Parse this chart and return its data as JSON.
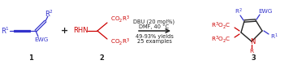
{
  "blue": "#3333cc",
  "red": "#cc0000",
  "black": "#222222",
  "bg": "#ffffff",
  "figsize": [
    3.77,
    0.85
  ],
  "dpi": 100,
  "compound1_label": "1",
  "compound2_label": "2",
  "compound3_label": "3",
  "condition1": "DBU (20 mol%)",
  "condition2": "DMF, 40 °C",
  "yield_text": "49-93% yields",
  "examples_text": "25 examples"
}
